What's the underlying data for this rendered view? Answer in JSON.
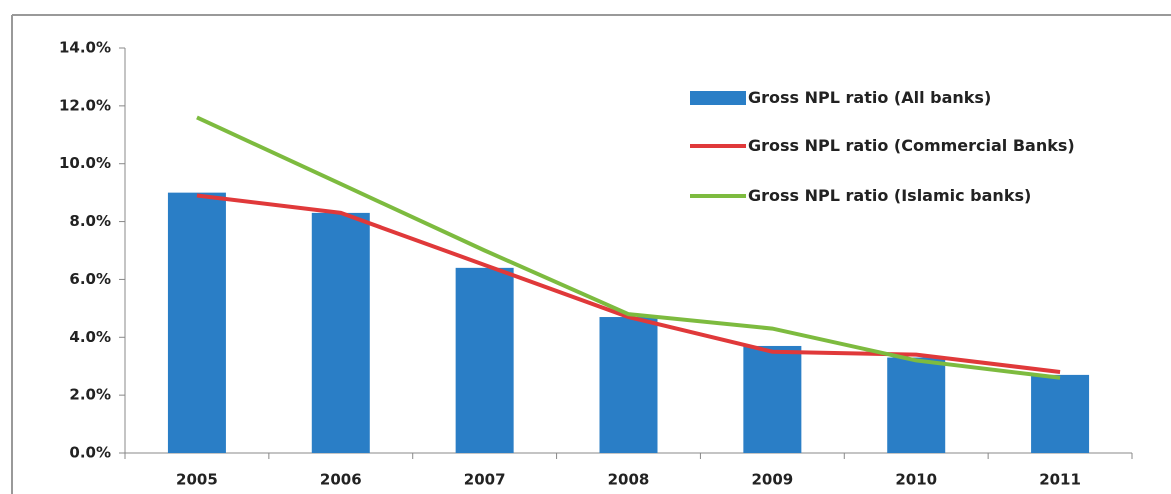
{
  "chart_data": {
    "type": "bar_line",
    "categories": [
      "2005",
      "2006",
      "2007",
      "2008",
      "2009",
      "2010",
      "2011"
    ],
    "series": [
      {
        "name": "Gross NPL ratio (All banks)",
        "type": "bar",
        "color": "#2a7ec6",
        "values": [
          9.0,
          8.3,
          6.4,
          4.7,
          3.7,
          3.3,
          2.7
        ]
      },
      {
        "name": "Gross NPL ratio (Commercial Banks)",
        "type": "line",
        "color": "#e0393a",
        "values": [
          8.9,
          8.3,
          6.5,
          4.7,
          3.5,
          3.4,
          2.8
        ]
      },
      {
        "name": "Gross NPL ratio (Islamic banks)",
        "type": "line",
        "color": "#7dbb3f",
        "values": [
          11.6,
          9.3,
          7.0,
          4.8,
          4.3,
          3.2,
          2.6
        ]
      }
    ],
    "ylim": [
      0,
      14
    ],
    "yticks": [
      {
        "value": 0,
        "label": "0.0%"
      },
      {
        "value": 2,
        "label": "2.0%"
      },
      {
        "value": 4,
        "label": "4.0%"
      },
      {
        "value": 6,
        "label": "6.0%"
      },
      {
        "value": 8,
        "label": "8.0%"
      },
      {
        "value": 10,
        "label": "10.0%"
      },
      {
        "value": 12,
        "label": "12.0%"
      },
      {
        "value": 14,
        "label": "14.0%"
      }
    ]
  }
}
